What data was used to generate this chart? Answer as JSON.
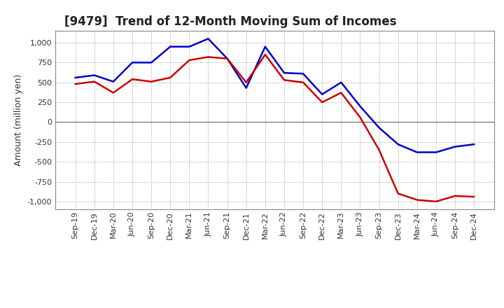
{
  "title": "[9479]  Trend of 12-Month Moving Sum of Incomes",
  "ylabel": "Amount (million yen)",
  "xlabels": [
    "Sep-19",
    "Dec-19",
    "Mar-20",
    "Jun-20",
    "Sep-20",
    "Dec-20",
    "Mar-21",
    "Jun-21",
    "Sep-21",
    "Dec-21",
    "Mar-22",
    "Jun-22",
    "Sep-22",
    "Dec-22",
    "Mar-23",
    "Jun-23",
    "Sep-23",
    "Dec-23",
    "Mar-24",
    "Jun-24",
    "Sep-24",
    "Dec-24"
  ],
  "ordinary_income": [
    560,
    590,
    510,
    750,
    750,
    950,
    950,
    1050,
    800,
    430,
    950,
    620,
    610,
    350,
    500,
    200,
    -70,
    -280,
    -380,
    -380,
    -310,
    -280
  ],
  "net_income": [
    480,
    510,
    370,
    540,
    510,
    560,
    780,
    820,
    800,
    500,
    850,
    530,
    500,
    250,
    370,
    60,
    -350,
    -900,
    -980,
    -1000,
    -930,
    -940
  ],
  "ordinary_color": "#0000cc",
  "net_color": "#cc0000",
  "ylim": [
    -1100,
    1150
  ],
  "yticks": [
    -1000,
    -750,
    -500,
    -250,
    0,
    250,
    500,
    750,
    1000
  ],
  "background_color": "#ffffff",
  "grid_color": "#999999",
  "title_fontsize": 12,
  "label_fontsize": 9,
  "tick_fontsize": 8,
  "legend_fontsize": 9,
  "line_width": 1.8
}
